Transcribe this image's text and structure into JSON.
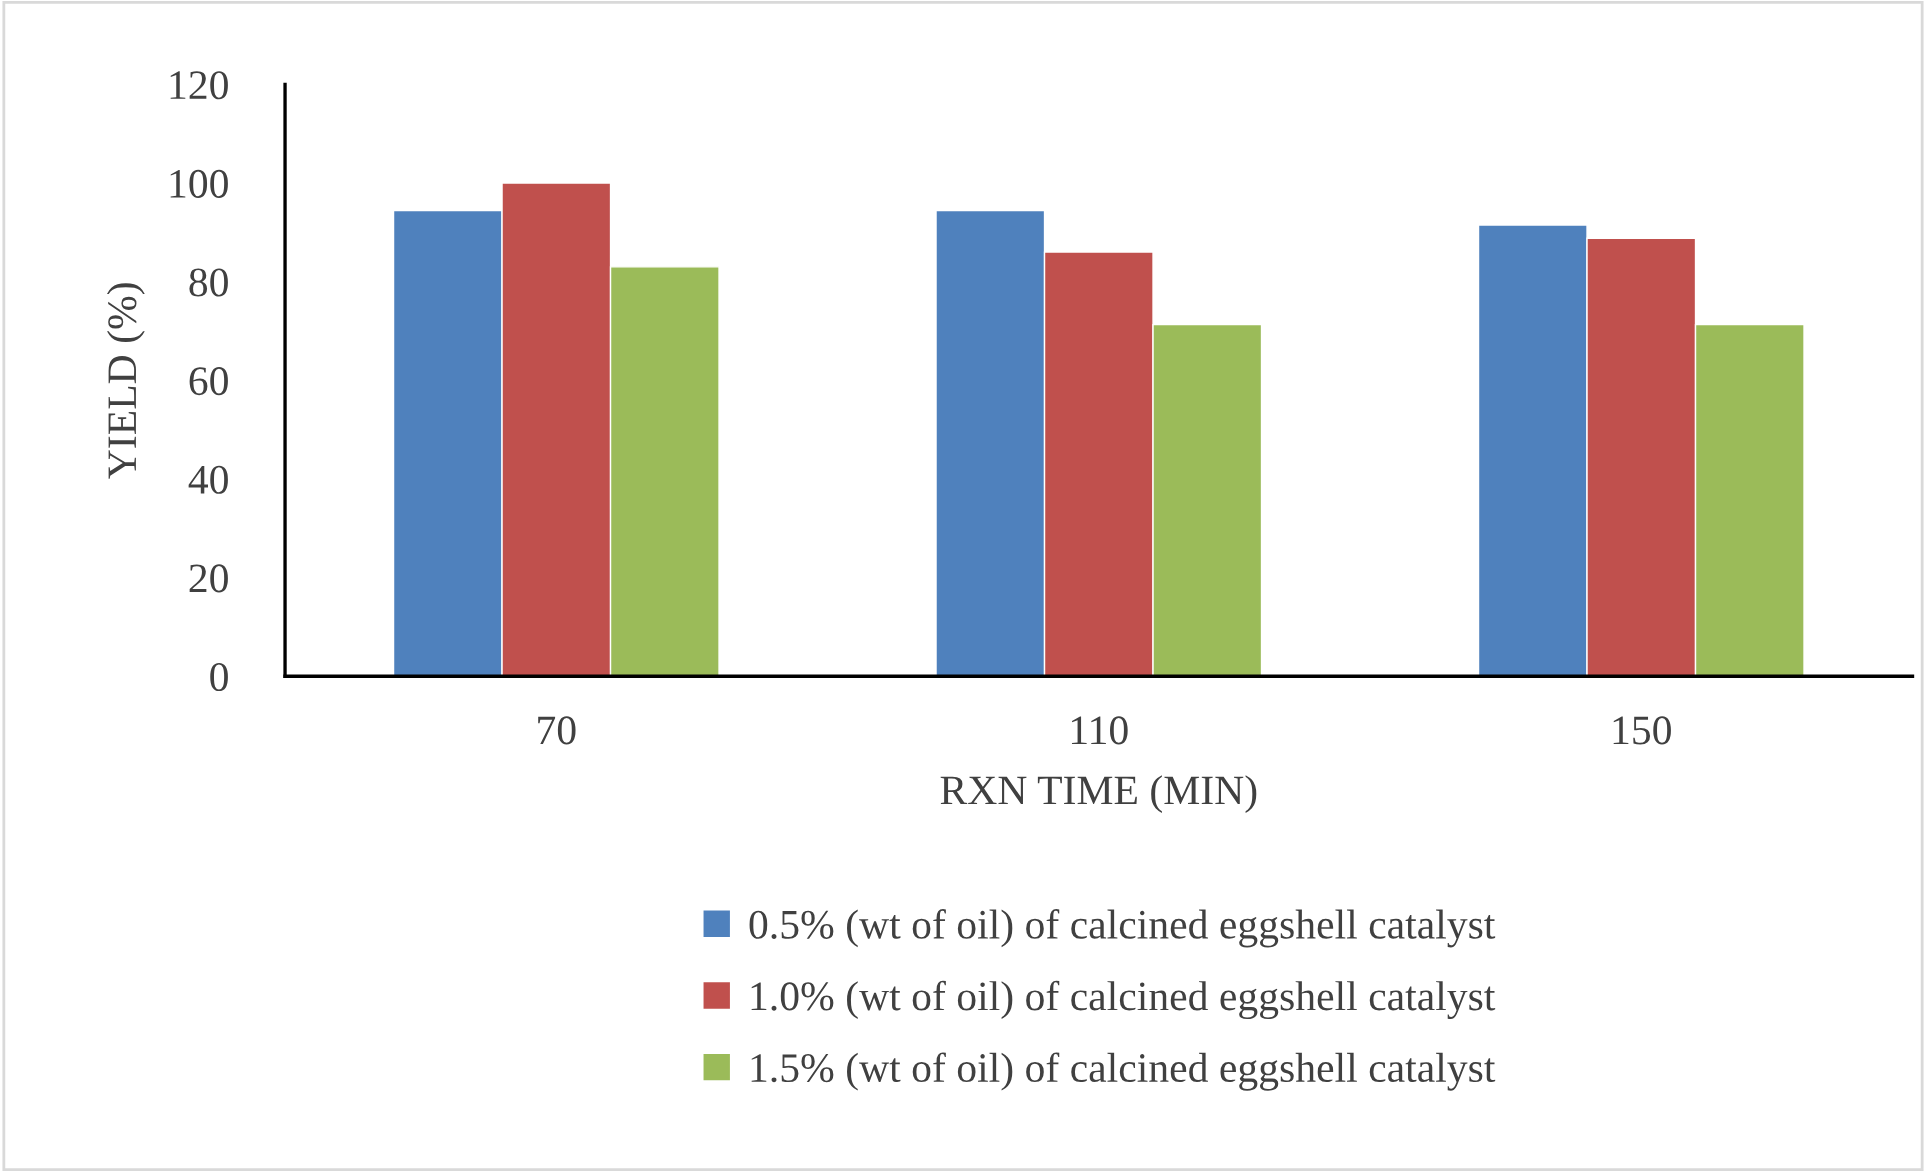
{
  "chart_data": {
    "type": "bar",
    "xlabel": "RXN TIME (MIN)",
    "ylabel": "YIELD (%)",
    "categories": [
      "70",
      "110",
      "150"
    ],
    "series": [
      {
        "name": "0.5% (wt of oil) of calcined eggshell catalyst",
        "color": "#4f81bd",
        "values": [
          94.4,
          94.4,
          91.5
        ]
      },
      {
        "name": "1.0% (wt of oil) of calcined eggshell catalyst",
        "color": "#c0504d",
        "values": [
          100,
          86,
          88.8
        ]
      },
      {
        "name": "1.5% (wt of oil) of calcined eggshell catalyst",
        "color": "#9bbb59",
        "values": [
          83,
          71.3,
          71.3
        ]
      }
    ],
    "ylim": [
      0,
      120
    ],
    "yticks": [
      0,
      20,
      40,
      60,
      80,
      100,
      120
    ],
    "grid": false,
    "legend": "bottom"
  }
}
